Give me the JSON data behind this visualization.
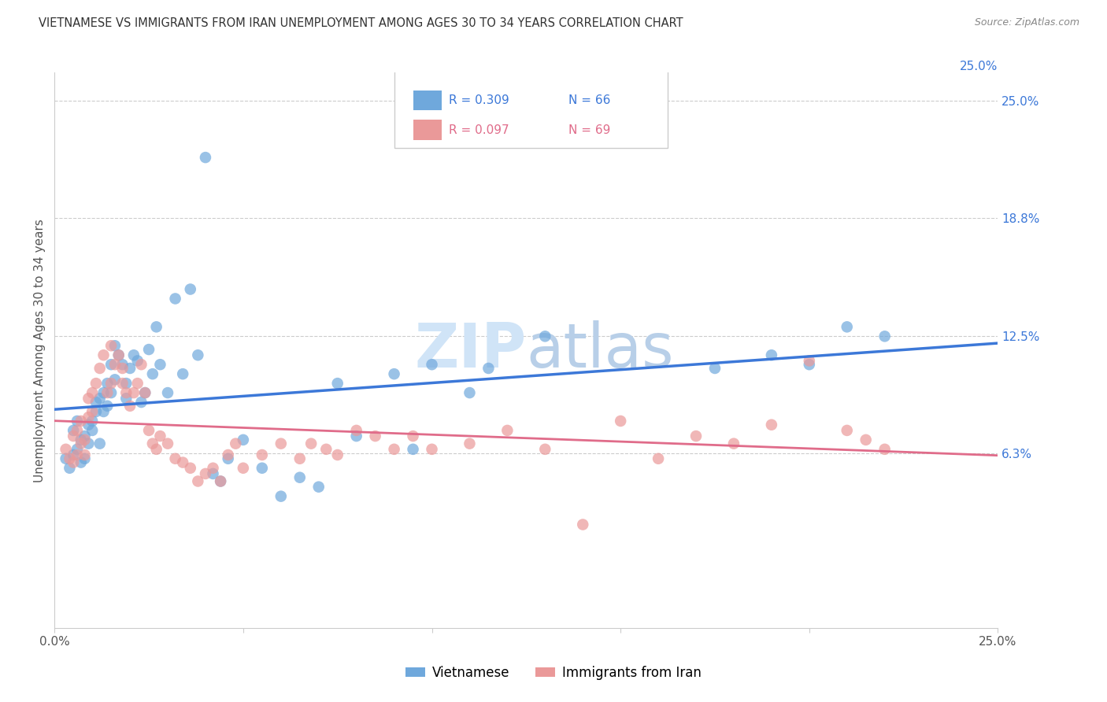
{
  "title": "VIETNAMESE VS IMMIGRANTS FROM IRAN UNEMPLOYMENT AMONG AGES 30 TO 34 YEARS CORRELATION CHART",
  "source": "Source: ZipAtlas.com",
  "ylabel": "Unemployment Among Ages 30 to 34 years",
  "ytick_values": [
    0.063,
    0.125,
    0.188,
    0.25
  ],
  "ytick_labels": [
    "6.3%",
    "12.5%",
    "18.8%",
    "25.0%"
  ],
  "xmin": 0.0,
  "xmax": 0.25,
  "ymin": -0.03,
  "ymax": 0.265,
  "r_vietnamese": 0.309,
  "n_vietnamese": 66,
  "r_iran": 0.097,
  "n_iran": 69,
  "color_vietnamese": "#6fa8dc",
  "color_iran": "#ea9999",
  "color_line_vietnamese": "#3c78d8",
  "color_line_iran": "#e06c8a",
  "watermark_color": "#d0e4f7",
  "legend_label_vietnamese": "Vietnamese",
  "legend_label_iran": "Immigrants from Iran",
  "vietnamese_x": [
    0.003,
    0.004,
    0.005,
    0.005,
    0.006,
    0.006,
    0.007,
    0.007,
    0.008,
    0.008,
    0.009,
    0.009,
    0.01,
    0.01,
    0.011,
    0.011,
    0.012,
    0.012,
    0.013,
    0.013,
    0.014,
    0.014,
    0.015,
    0.015,
    0.016,
    0.016,
    0.017,
    0.018,
    0.019,
    0.019,
    0.02,
    0.021,
    0.022,
    0.023,
    0.024,
    0.025,
    0.026,
    0.027,
    0.028,
    0.03,
    0.032,
    0.034,
    0.036,
    0.038,
    0.04,
    0.042,
    0.044,
    0.046,
    0.05,
    0.055,
    0.06,
    0.065,
    0.07,
    0.075,
    0.08,
    0.09,
    0.095,
    0.1,
    0.11,
    0.115,
    0.13,
    0.175,
    0.19,
    0.2,
    0.21,
    0.22
  ],
  "vietnamese_y": [
    0.06,
    0.055,
    0.062,
    0.075,
    0.065,
    0.08,
    0.058,
    0.07,
    0.072,
    0.06,
    0.068,
    0.078,
    0.08,
    0.075,
    0.09,
    0.085,
    0.092,
    0.068,
    0.085,
    0.095,
    0.1,
    0.088,
    0.095,
    0.11,
    0.102,
    0.12,
    0.115,
    0.11,
    0.1,
    0.092,
    0.108,
    0.115,
    0.112,
    0.09,
    0.095,
    0.118,
    0.105,
    0.13,
    0.11,
    0.095,
    0.145,
    0.105,
    0.15,
    0.115,
    0.22,
    0.052,
    0.048,
    0.06,
    0.07,
    0.055,
    0.04,
    0.05,
    0.045,
    0.1,
    0.072,
    0.105,
    0.065,
    0.11,
    0.095,
    0.108,
    0.125,
    0.108,
    0.115,
    0.11,
    0.13,
    0.125
  ],
  "iran_x": [
    0.003,
    0.004,
    0.005,
    0.005,
    0.006,
    0.006,
    0.007,
    0.007,
    0.008,
    0.008,
    0.009,
    0.009,
    0.01,
    0.01,
    0.011,
    0.012,
    0.013,
    0.014,
    0.015,
    0.015,
    0.016,
    0.017,
    0.018,
    0.018,
    0.019,
    0.02,
    0.021,
    0.022,
    0.023,
    0.024,
    0.025,
    0.026,
    0.027,
    0.028,
    0.03,
    0.032,
    0.034,
    0.036,
    0.038,
    0.04,
    0.042,
    0.044,
    0.046,
    0.048,
    0.05,
    0.055,
    0.06,
    0.065,
    0.068,
    0.072,
    0.075,
    0.08,
    0.085,
    0.09,
    0.095,
    0.1,
    0.11,
    0.12,
    0.13,
    0.14,
    0.15,
    0.16,
    0.17,
    0.18,
    0.19,
    0.2,
    0.21,
    0.215,
    0.22
  ],
  "iran_y": [
    0.065,
    0.06,
    0.058,
    0.072,
    0.062,
    0.075,
    0.068,
    0.08,
    0.07,
    0.062,
    0.082,
    0.092,
    0.095,
    0.085,
    0.1,
    0.108,
    0.115,
    0.095,
    0.12,
    0.1,
    0.11,
    0.115,
    0.108,
    0.1,
    0.095,
    0.088,
    0.095,
    0.1,
    0.11,
    0.095,
    0.075,
    0.068,
    0.065,
    0.072,
    0.068,
    0.06,
    0.058,
    0.055,
    0.048,
    0.052,
    0.055,
    0.048,
    0.062,
    0.068,
    0.055,
    0.062,
    0.068,
    0.06,
    0.068,
    0.065,
    0.062,
    0.075,
    0.072,
    0.065,
    0.072,
    0.065,
    0.068,
    0.075,
    0.065,
    0.025,
    0.08,
    0.06,
    0.072,
    0.068,
    0.078,
    0.112,
    0.075,
    0.07,
    0.065
  ]
}
